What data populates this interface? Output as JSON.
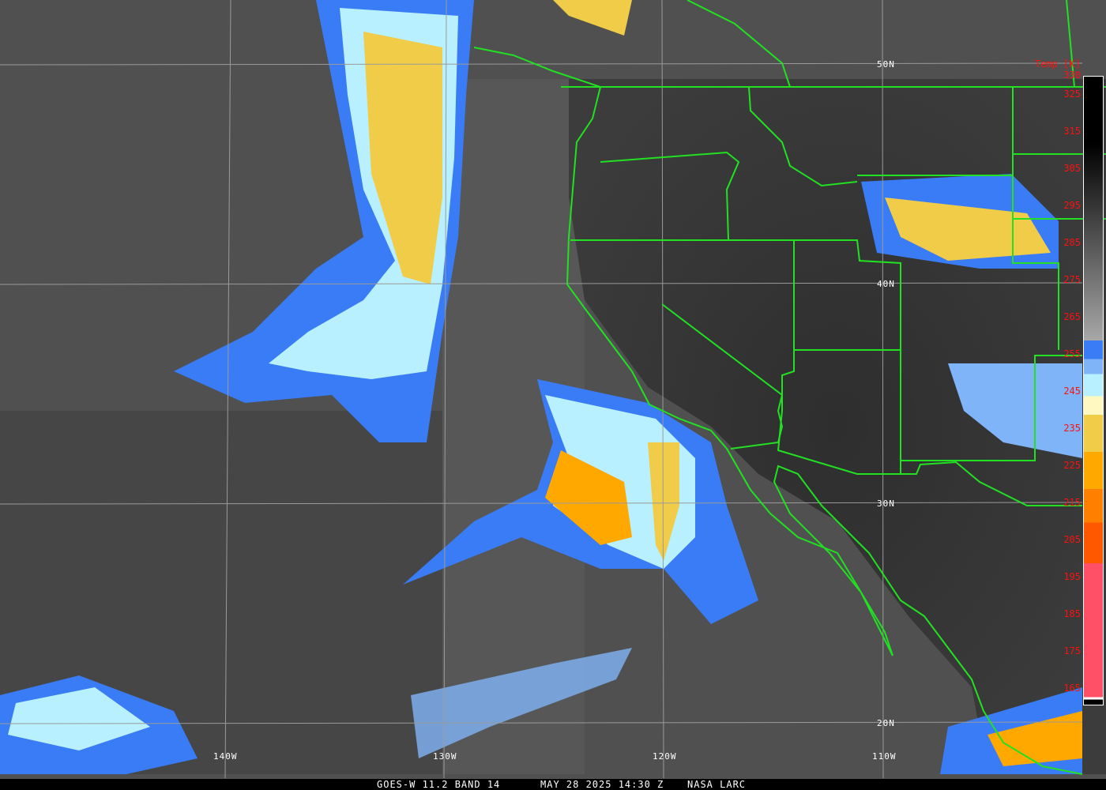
{
  "caption": {
    "satellite": "GOES-W 11.2 BAND 14",
    "datetime": "MAY 28 2025 14:30 Z",
    "source": "NASA LARC"
  },
  "grid_labels": {
    "lat": [
      "50N",
      "40N",
      "30N",
      "20N"
    ],
    "lon": [
      "140W",
      "130W",
      "120W",
      "110W"
    ]
  },
  "colorbar": {
    "title": "Temp [K]",
    "ticks": [
      "330",
      "325",
      "315",
      "305",
      "295",
      "285",
      "275",
      "265",
      "255",
      "245",
      "235",
      "225",
      "215",
      "205",
      "195",
      "185",
      "175",
      "165"
    ],
    "colors": {
      "warm_top": "#000000",
      "gray_bottom": "#a8a8a8",
      "blue": "#3a7cf5",
      "mid_blue": "#7fb4f8",
      "cyan": "#b8f0ff",
      "pale_yellow": "#fff8c0",
      "yellow": "#f0cc48",
      "orange": "#ffa800",
      "dark_orange": "#ff8000",
      "red_orange": "#ff5800",
      "pink": "#ff5068"
    }
  },
  "colors": {
    "boundary": "#22e022",
    "grid": "#9a9a9a",
    "label": "#ffffff",
    "tick": "#ff1010"
  }
}
